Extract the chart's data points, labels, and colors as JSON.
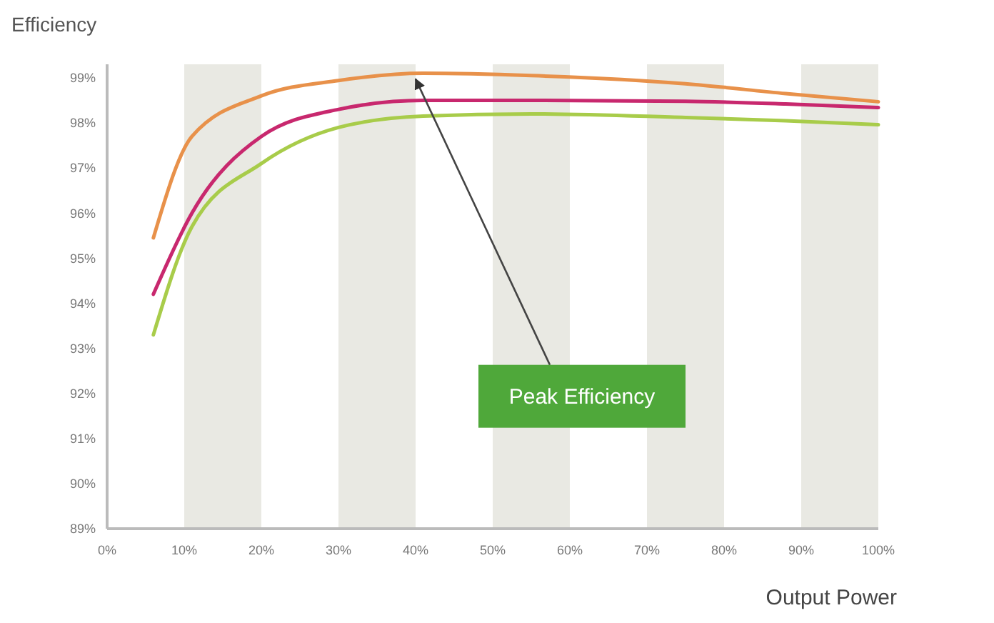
{
  "chart_data": {
    "type": "line",
    "xlabel": "Output Power",
    "ylabel": "Efficiency",
    "xlim": [
      0,
      100
    ],
    "ylim": [
      89,
      99.3
    ],
    "xticks": [
      {
        "value": 0,
        "label": "0%"
      },
      {
        "value": 10,
        "label": "10%"
      },
      {
        "value": 20,
        "label": "20%"
      },
      {
        "value": 30,
        "label": "30%"
      },
      {
        "value": 40,
        "label": "40%"
      },
      {
        "value": 50,
        "label": "50%"
      },
      {
        "value": 60,
        "label": "60%"
      },
      {
        "value": 70,
        "label": "70%"
      },
      {
        "value": 80,
        "label": "80%"
      },
      {
        "value": 90,
        "label": "90%"
      },
      {
        "value": 100,
        "label": "100%"
      }
    ],
    "yticks": [
      {
        "value": 89,
        "label": "89%"
      },
      {
        "value": 90,
        "label": "90%"
      },
      {
        "value": 91,
        "label": "91%"
      },
      {
        "value": 92,
        "label": "92%"
      },
      {
        "value": 93,
        "label": "93%"
      },
      {
        "value": 94,
        "label": "94%"
      },
      {
        "value": 95,
        "label": "95%"
      },
      {
        "value": 96,
        "label": "96%"
      },
      {
        "value": 97,
        "label": "97%"
      },
      {
        "value": 98,
        "label": "98%"
      },
      {
        "value": 99,
        "label": "99%"
      }
    ],
    "x": [
      6,
      11,
      20,
      30,
      41,
      55,
      75,
      88,
      100
    ],
    "series": [
      {
        "color": "#a8cc4a",
        "values": [
          93.3,
          95.7,
          97.1,
          97.9,
          98.15,
          98.2,
          98.12,
          98.05,
          97.96
        ]
      },
      {
        "color": "#e8914a",
        "values": [
          95.45,
          97.7,
          98.6,
          98.94,
          99.1,
          99.05,
          98.87,
          98.65,
          98.47
        ]
      },
      {
        "color": "#c8286e",
        "values": [
          94.2,
          96.0,
          97.7,
          98.3,
          98.5,
          98.5,
          98.48,
          98.42,
          98.34
        ]
      }
    ],
    "bands": [
      {
        "axis": "x",
        "from": 10,
        "to": 20,
        "color": "#e9e9e3"
      },
      {
        "axis": "x",
        "from": 30,
        "to": 40,
        "color": "#e9e9e3"
      },
      {
        "axis": "x",
        "from": 50,
        "to": 60,
        "color": "#e9e9e3"
      },
      {
        "axis": "x",
        "from": 70,
        "to": 80,
        "color": "#e9e9e3"
      },
      {
        "axis": "x",
        "from": 90,
        "to": 100,
        "color": "#e9e9e3"
      }
    ],
    "annotations": [
      {
        "text": "Peak Efficiency",
        "x": 40,
        "y": 99.1
      }
    ],
    "grid": false,
    "legend": false,
    "marker": "none",
    "line_style": "solid"
  }
}
